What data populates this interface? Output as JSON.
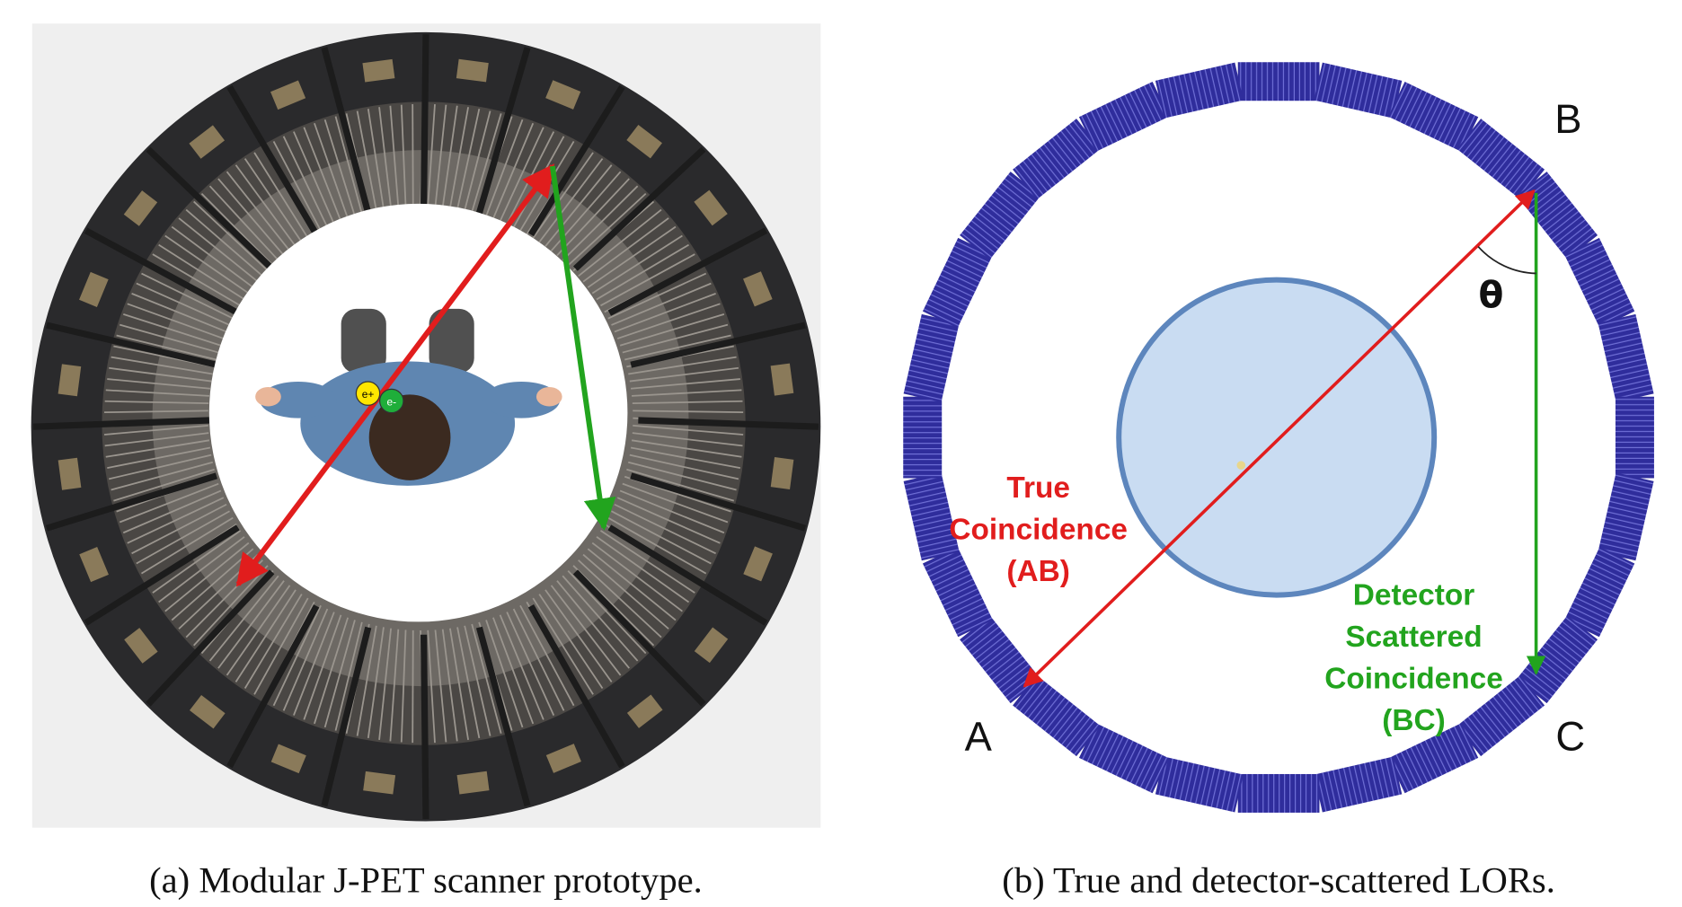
{
  "panel_a": {
    "caption": "(a) Modular J-PET scanner prototype.",
    "positron": "e+",
    "electron": "e-"
  },
  "panel_b": {
    "caption": "(b) True and detector-scattered LORs.",
    "point_a": "A",
    "point_b": "B",
    "point_c": "C",
    "angle": "θ",
    "true_label": [
      "True",
      "Coincidence",
      "(AB)"
    ],
    "scatter_label": [
      "Detector",
      "Scattered",
      "Coincidence",
      "(BC)"
    ]
  }
}
